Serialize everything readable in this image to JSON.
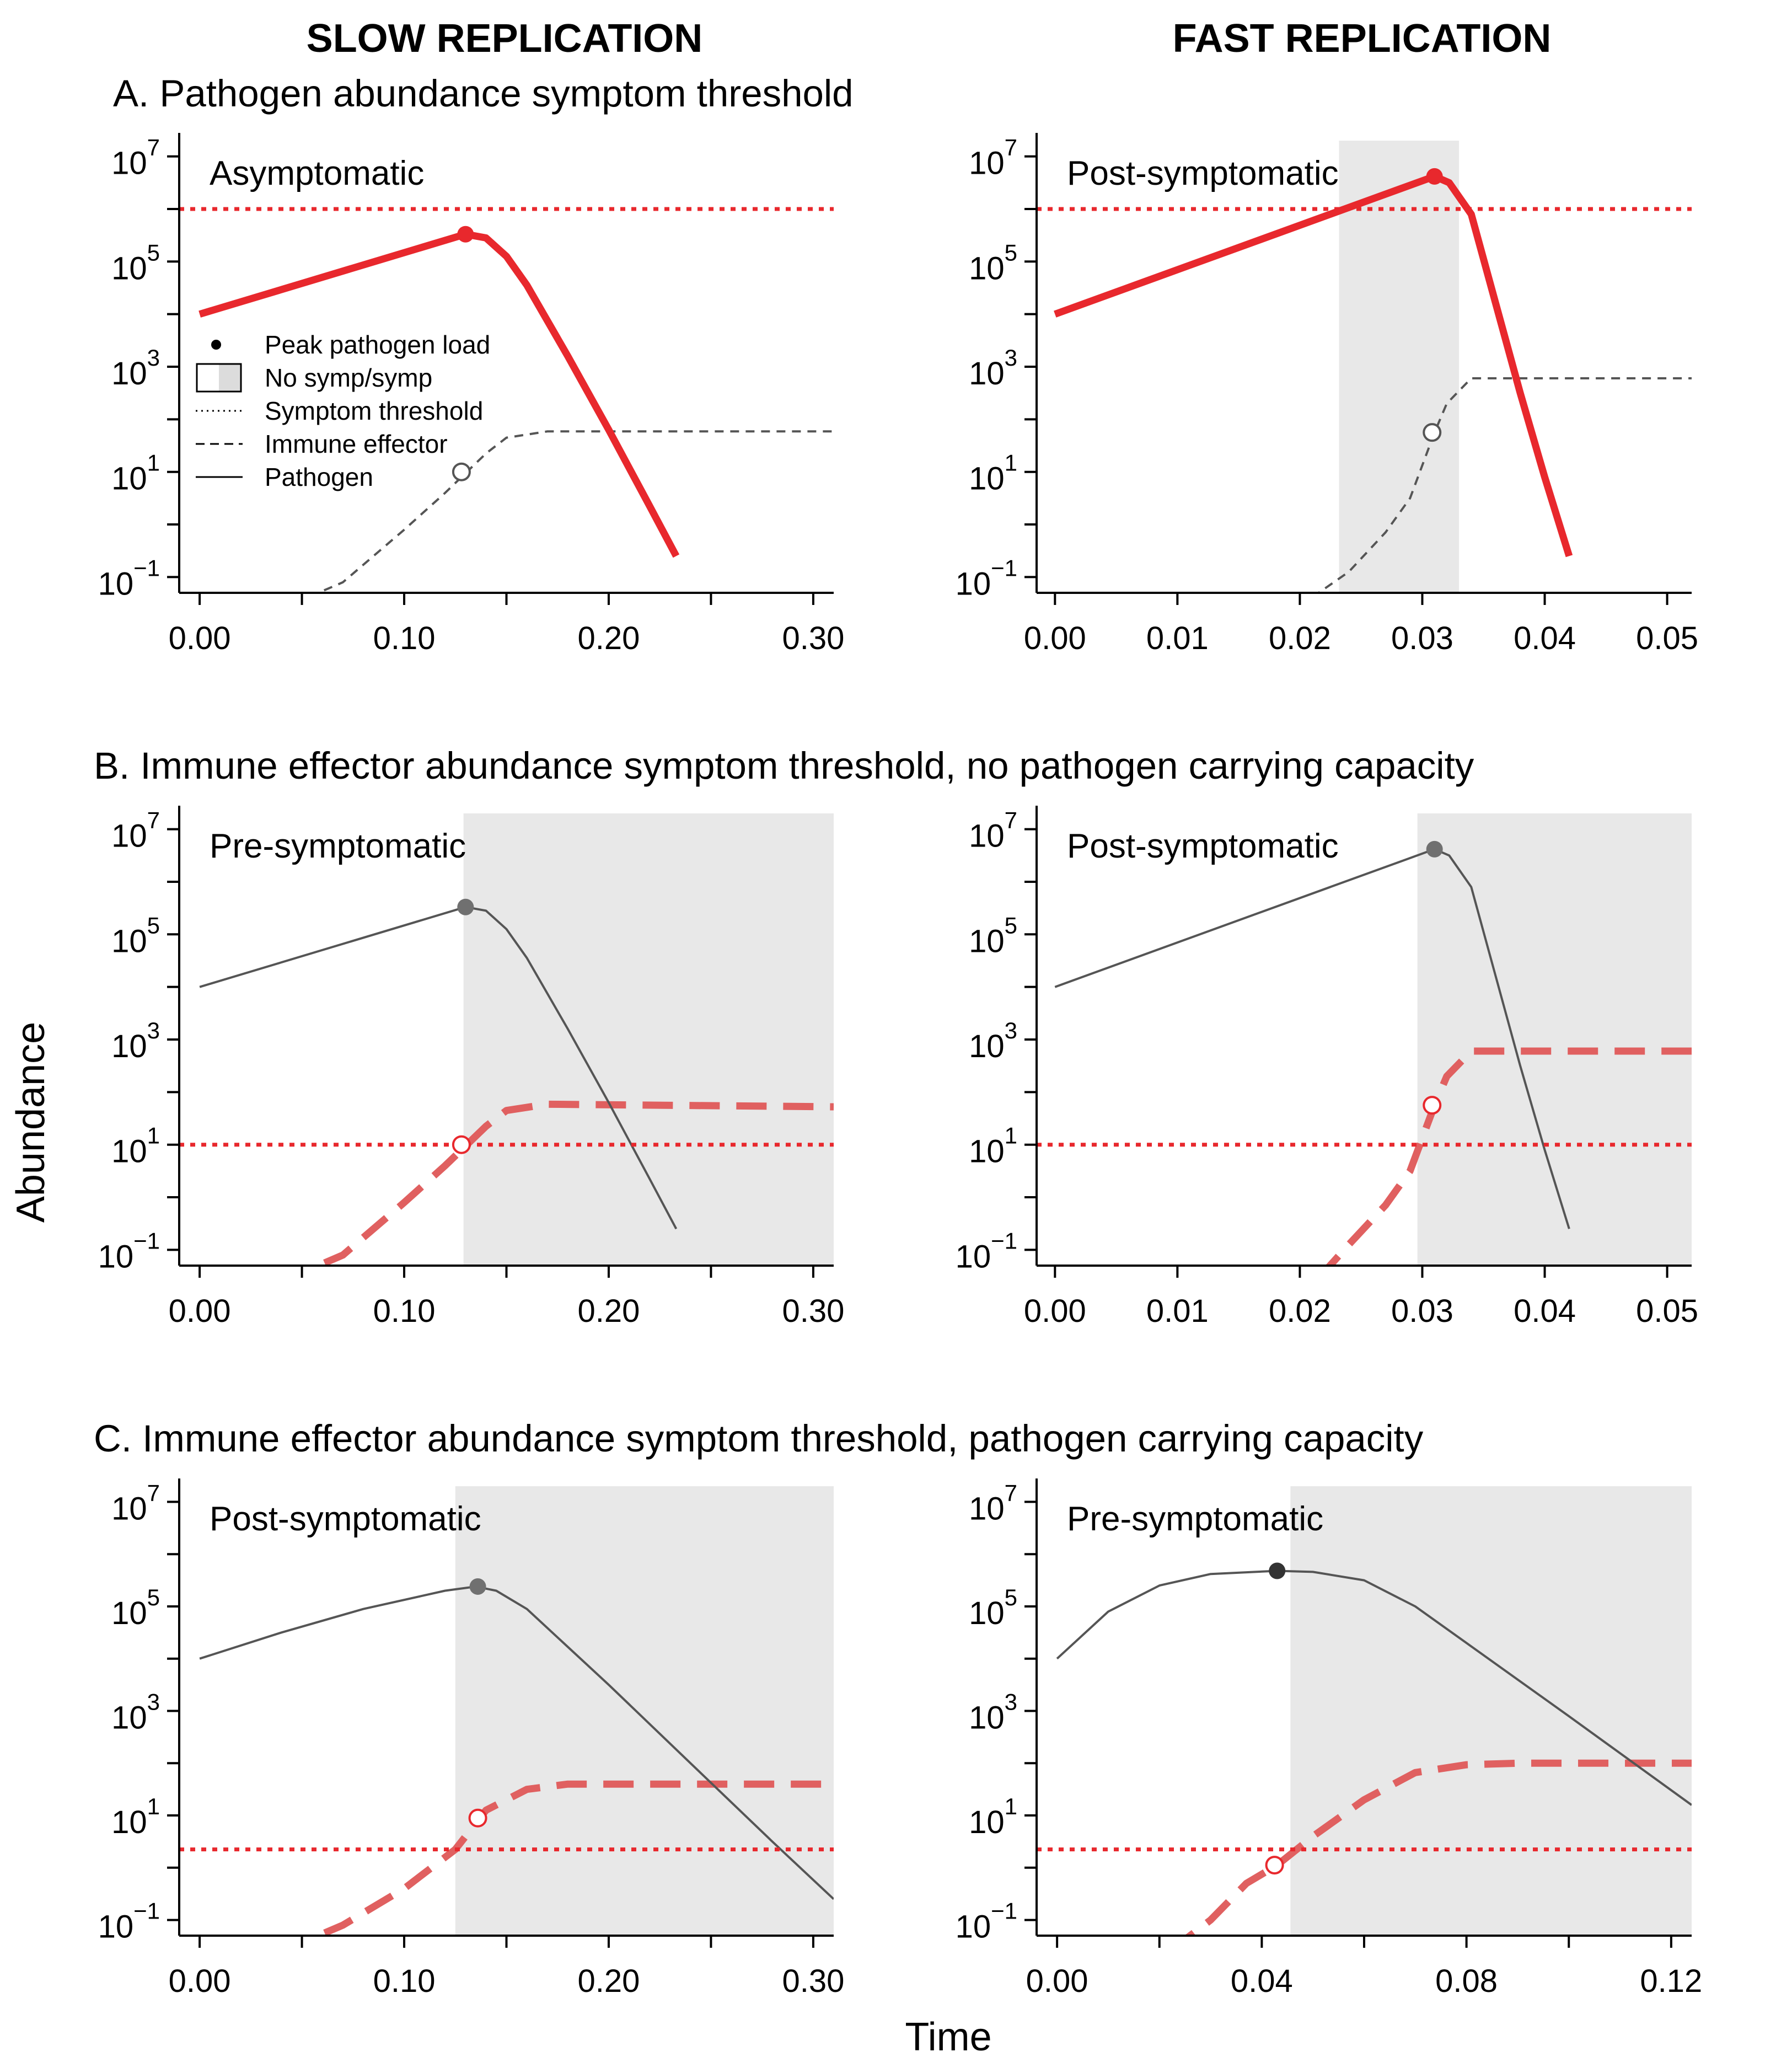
{
  "figure": {
    "column_titles": [
      "SLOW REPLICATION",
      "FAST REPLICATION"
    ],
    "row_titles": [
      "A. Pathogen abundance symptom threshold",
      "B. Immune effector abundance symptom threshold, no pathogen carrying capacity",
      "C. Immune effector abundance symptom threshold, pathogen carrying capacity"
    ],
    "ylabel": "Abundance",
    "xlabel": "Time",
    "legend": [
      {
        "label": "Peak pathogen load",
        "symbol": "dot"
      },
      {
        "label": "No symp/symp",
        "symbol": "box"
      },
      {
        "label": "Symptom threshold",
        "symbol": "dotted"
      },
      {
        "label": "Immune effector",
        "symbol": "dashed"
      },
      {
        "label": "Pathogen",
        "symbol": "solid"
      }
    ],
    "colors": {
      "red": "#e8282d",
      "red_light": "#e06060",
      "gray_line": "#555555",
      "dark_dot": "#333333",
      "shade": "#e8e8e8"
    }
  },
  "chart_data": [
    {
      "id": "A-slow",
      "type": "line",
      "title": "Asymptomatic",
      "xlim": [
        -0.01,
        0.31
      ],
      "x_ticks": [
        0.0,
        0.05,
        0.1,
        0.15,
        0.2,
        0.25,
        0.3
      ],
      "x_tick_labels": [
        "0.00",
        "",
        "0.10",
        "",
        "0.20",
        "",
        "0.30"
      ],
      "ylim_log10": [
        -1.3,
        7.3
      ],
      "y_ticks_log10": [
        -1,
        0,
        1,
        2,
        3,
        4,
        5,
        6,
        7
      ],
      "y_tick_labels": [
        {
          "base": "10",
          "exp": "−1"
        },
        {
          "base": "",
          "exp": ""
        },
        {
          "base": "10",
          "exp": "1"
        },
        {
          "base": "",
          "exp": ""
        },
        {
          "base": "10",
          "exp": "3"
        },
        {
          "base": "",
          "exp": ""
        },
        {
          "base": "10",
          "exp": "5"
        },
        {
          "base": "",
          "exp": ""
        },
        {
          "base": "10",
          "exp": "7"
        }
      ],
      "shade": null,
      "threshold_log10": 6.0,
      "threshold_on": "pathogen",
      "pathogen": {
        "emphasis": true,
        "points": [
          [
            0.0,
            4.0
          ],
          [
            0.13,
            5.52
          ],
          [
            0.14,
            5.45
          ],
          [
            0.15,
            5.1
          ],
          [
            0.16,
            4.55
          ],
          [
            0.18,
            3.2
          ],
          [
            0.2,
            1.8
          ],
          [
            0.22,
            0.35
          ],
          [
            0.233,
            -0.6
          ]
        ]
      },
      "immune": {
        "emphasis": false,
        "points": [
          [
            0.04,
            -1.6
          ],
          [
            0.07,
            -1.1
          ],
          [
            0.1,
            -0.1
          ],
          [
            0.12,
            0.6
          ],
          [
            0.14,
            1.35
          ],
          [
            0.15,
            1.65
          ],
          [
            0.17,
            1.77
          ],
          [
            0.31,
            1.77
          ]
        ]
      },
      "peak": {
        "x": 0.13,
        "y_log10": 5.52
      },
      "crossing": {
        "x": 0.128,
        "y_log10": 1.0
      }
    },
    {
      "id": "A-fast",
      "type": "line",
      "title": "Post-symptomatic",
      "xlim": [
        -0.0015,
        0.052
      ],
      "x_ticks": [
        0.0,
        0.01,
        0.02,
        0.03,
        0.04,
        0.05
      ],
      "x_tick_labels": [
        "0.00",
        "0.01",
        "0.02",
        "0.03",
        "0.04",
        "0.05"
      ],
      "ylim_log10": [
        -1.3,
        7.3
      ],
      "y_ticks_log10": [
        -1,
        0,
        1,
        2,
        3,
        4,
        5,
        6,
        7
      ],
      "y_tick_labels": [
        {
          "base": "10",
          "exp": "−1"
        },
        {
          "base": "",
          "exp": ""
        },
        {
          "base": "10",
          "exp": "1"
        },
        {
          "base": "",
          "exp": ""
        },
        {
          "base": "10",
          "exp": "3"
        },
        {
          "base": "",
          "exp": ""
        },
        {
          "base": "10",
          "exp": "5"
        },
        {
          "base": "",
          "exp": ""
        },
        {
          "base": "10",
          "exp": "7"
        }
      ],
      "shade": [
        0.0232,
        0.033
      ],
      "threshold_log10": 6.0,
      "threshold_on": "pathogen",
      "pathogen": {
        "emphasis": true,
        "points": [
          [
            0.0,
            4.0
          ],
          [
            0.031,
            6.62
          ],
          [
            0.0322,
            6.5
          ],
          [
            0.034,
            5.9
          ],
          [
            0.036,
            4.2
          ],
          [
            0.038,
            2.5
          ],
          [
            0.04,
            0.9
          ],
          [
            0.042,
            -0.6
          ]
        ]
      },
      "immune": {
        "emphasis": false,
        "points": [
          [
            0.02,
            -1.55
          ],
          [
            0.024,
            -0.9
          ],
          [
            0.027,
            -0.15
          ],
          [
            0.029,
            0.5
          ],
          [
            0.031,
            1.75
          ],
          [
            0.032,
            2.3
          ],
          [
            0.034,
            2.78
          ],
          [
            0.052,
            2.78
          ]
        ]
      },
      "peak": {
        "x": 0.031,
        "y_log10": 6.62
      },
      "crossing": {
        "x": 0.0308,
        "y_log10": 1.75
      }
    },
    {
      "id": "B-slow",
      "type": "line",
      "title": "Pre-symptomatic",
      "xlim": [
        -0.01,
        0.31
      ],
      "x_ticks": [
        0.0,
        0.05,
        0.1,
        0.15,
        0.2,
        0.25,
        0.3
      ],
      "x_tick_labels": [
        "0.00",
        "",
        "0.10",
        "",
        "0.20",
        "",
        "0.30"
      ],
      "ylim_log10": [
        -1.3,
        7.3
      ],
      "y_ticks_log10": [
        -1,
        0,
        1,
        2,
        3,
        4,
        5,
        6,
        7
      ],
      "y_tick_labels": [
        {
          "base": "10",
          "exp": "−1"
        },
        {
          "base": "",
          "exp": ""
        },
        {
          "base": "10",
          "exp": "1"
        },
        {
          "base": "",
          "exp": ""
        },
        {
          "base": "10",
          "exp": "3"
        },
        {
          "base": "",
          "exp": ""
        },
        {
          "base": "10",
          "exp": "5"
        },
        {
          "base": "",
          "exp": ""
        },
        {
          "base": "10",
          "exp": "7"
        }
      ],
      "shade": [
        0.129,
        0.31
      ],
      "threshold_log10": 1.0,
      "threshold_on": "immune",
      "pathogen": {
        "emphasis": false,
        "points": [
          [
            0.0,
            4.0
          ],
          [
            0.13,
            5.52
          ],
          [
            0.14,
            5.45
          ],
          [
            0.15,
            5.1
          ],
          [
            0.16,
            4.55
          ],
          [
            0.18,
            3.2
          ],
          [
            0.2,
            1.8
          ],
          [
            0.22,
            0.35
          ],
          [
            0.233,
            -0.6
          ]
        ]
      },
      "immune": {
        "emphasis": true,
        "points": [
          [
            0.04,
            -1.6
          ],
          [
            0.07,
            -1.1
          ],
          [
            0.1,
            -0.1
          ],
          [
            0.12,
            0.6
          ],
          [
            0.14,
            1.35
          ],
          [
            0.15,
            1.65
          ],
          [
            0.17,
            1.77
          ],
          [
            0.31,
            1.72
          ]
        ]
      },
      "peak": {
        "x": 0.13,
        "y_log10": 5.52
      },
      "crossing": {
        "x": 0.128,
        "y_log10": 1.0
      }
    },
    {
      "id": "B-fast",
      "type": "line",
      "title": "Post-symptomatic",
      "xlim": [
        -0.0015,
        0.052
      ],
      "x_ticks": [
        0.0,
        0.01,
        0.02,
        0.03,
        0.04,
        0.05
      ],
      "x_tick_labels": [
        "0.00",
        "0.01",
        "0.02",
        "0.03",
        "0.04",
        "0.05"
      ],
      "ylim_log10": [
        -1.3,
        7.3
      ],
      "y_ticks_log10": [
        -1,
        0,
        1,
        2,
        3,
        4,
        5,
        6,
        7
      ],
      "y_tick_labels": [
        {
          "base": "10",
          "exp": "−1"
        },
        {
          "base": "",
          "exp": ""
        },
        {
          "base": "10",
          "exp": "1"
        },
        {
          "base": "",
          "exp": ""
        },
        {
          "base": "10",
          "exp": "3"
        },
        {
          "base": "",
          "exp": ""
        },
        {
          "base": "10",
          "exp": "5"
        },
        {
          "base": "",
          "exp": ""
        },
        {
          "base": "10",
          "exp": "7"
        }
      ],
      "shade": [
        0.0296,
        0.052
      ],
      "threshold_log10": 1.0,
      "threshold_on": "immune",
      "pathogen": {
        "emphasis": false,
        "points": [
          [
            0.0,
            4.0
          ],
          [
            0.031,
            6.62
          ],
          [
            0.0322,
            6.5
          ],
          [
            0.034,
            5.9
          ],
          [
            0.036,
            4.2
          ],
          [
            0.038,
            2.5
          ],
          [
            0.04,
            0.9
          ],
          [
            0.042,
            -0.6
          ]
        ]
      },
      "immune": {
        "emphasis": true,
        "points": [
          [
            0.0215,
            -1.55
          ],
          [
            0.024,
            -0.9
          ],
          [
            0.027,
            -0.15
          ],
          [
            0.029,
            0.5
          ],
          [
            0.031,
            1.75
          ],
          [
            0.032,
            2.3
          ],
          [
            0.034,
            2.78
          ],
          [
            0.052,
            2.78
          ]
        ]
      },
      "peak": {
        "x": 0.031,
        "y_log10": 6.62
      },
      "crossing": {
        "x": 0.0308,
        "y_log10": 1.75
      }
    },
    {
      "id": "C-slow",
      "type": "line",
      "title": "Post-symptomatic",
      "xlim": [
        -0.01,
        0.31
      ],
      "x_ticks": [
        0.0,
        0.05,
        0.1,
        0.15,
        0.2,
        0.25,
        0.3
      ],
      "x_tick_labels": [
        "0.00",
        "",
        "0.10",
        "",
        "0.20",
        "",
        "0.30"
      ],
      "ylim_log10": [
        -1.3,
        7.3
      ],
      "y_ticks_log10": [
        -1,
        0,
        1,
        2,
        3,
        4,
        5,
        6,
        7
      ],
      "y_tick_labels": [
        {
          "base": "10",
          "exp": "−1"
        },
        {
          "base": "",
          "exp": ""
        },
        {
          "base": "10",
          "exp": "1"
        },
        {
          "base": "",
          "exp": ""
        },
        {
          "base": "10",
          "exp": "3"
        },
        {
          "base": "",
          "exp": ""
        },
        {
          "base": "10",
          "exp": "5"
        },
        {
          "base": "",
          "exp": ""
        },
        {
          "base": "10",
          "exp": "7"
        }
      ],
      "shade": [
        0.125,
        0.31
      ],
      "threshold_log10": 0.35,
      "threshold_on": "immune",
      "pathogen": {
        "emphasis": false,
        "points": [
          [
            0.0,
            4.0
          ],
          [
            0.04,
            4.5
          ],
          [
            0.08,
            4.95
          ],
          [
            0.12,
            5.3
          ],
          [
            0.135,
            5.38
          ],
          [
            0.145,
            5.3
          ],
          [
            0.16,
            4.95
          ],
          [
            0.2,
            3.5
          ],
          [
            0.24,
            2.0
          ],
          [
            0.28,
            0.5
          ],
          [
            0.31,
            -0.6
          ]
        ]
      },
      "immune": {
        "emphasis": true,
        "points": [
          [
            0.04,
            -1.6
          ],
          [
            0.07,
            -1.1
          ],
          [
            0.1,
            -0.4
          ],
          [
            0.125,
            0.35
          ],
          [
            0.14,
            1.1
          ],
          [
            0.16,
            1.5
          ],
          [
            0.18,
            1.6
          ],
          [
            0.31,
            1.6
          ]
        ]
      },
      "peak": {
        "x": 0.136,
        "y_log10": 5.38
      },
      "crossing": {
        "x": 0.136,
        "y_log10": 0.95
      }
    },
    {
      "id": "C-fast",
      "type": "line",
      "title": "Pre-symptomatic",
      "xlim": [
        -0.004,
        0.124
      ],
      "x_ticks": [
        0.0,
        0.02,
        0.04,
        0.06,
        0.08,
        0.1,
        0.12
      ],
      "x_tick_labels": [
        "0.00",
        "",
        "0.04",
        "",
        "0.08",
        "",
        "0.12"
      ],
      "ylim_log10": [
        -1.3,
        7.3
      ],
      "y_ticks_log10": [
        -1,
        0,
        1,
        2,
        3,
        4,
        5,
        6,
        7
      ],
      "y_tick_labels": [
        {
          "base": "10",
          "exp": "−1"
        },
        {
          "base": "",
          "exp": ""
        },
        {
          "base": "10",
          "exp": "1"
        },
        {
          "base": "",
          "exp": ""
        },
        {
          "base": "10",
          "exp": "3"
        },
        {
          "base": "",
          "exp": ""
        },
        {
          "base": "10",
          "exp": "5"
        },
        {
          "base": "",
          "exp": ""
        },
        {
          "base": "10",
          "exp": "7"
        }
      ],
      "shade": [
        0.0456,
        0.124
      ],
      "threshold_log10": 0.35,
      "threshold_on": "immune",
      "pathogen": {
        "emphasis": false,
        "points": [
          [
            0.0,
            4.0
          ],
          [
            0.01,
            4.9
          ],
          [
            0.02,
            5.4
          ],
          [
            0.03,
            5.62
          ],
          [
            0.043,
            5.68
          ],
          [
            0.05,
            5.66
          ],
          [
            0.06,
            5.5
          ],
          [
            0.07,
            5.0
          ],
          [
            0.08,
            4.3
          ],
          [
            0.1,
            2.9
          ],
          [
            0.124,
            1.2
          ]
        ]
      },
      "immune": {
        "emphasis": true,
        "points": [
          [
            0.022,
            -1.6
          ],
          [
            0.03,
            -1.0
          ],
          [
            0.037,
            -0.3
          ],
          [
            0.043,
            0.05
          ],
          [
            0.05,
            0.6
          ],
          [
            0.06,
            1.3
          ],
          [
            0.07,
            1.82
          ],
          [
            0.08,
            1.97
          ],
          [
            0.09,
            2.0
          ],
          [
            0.124,
            2.0
          ]
        ]
      },
      "peak": {
        "x": 0.043,
        "y_log10": 5.68
      },
      "crossing": {
        "x": 0.0425,
        "y_log10": 0.05
      }
    }
  ]
}
